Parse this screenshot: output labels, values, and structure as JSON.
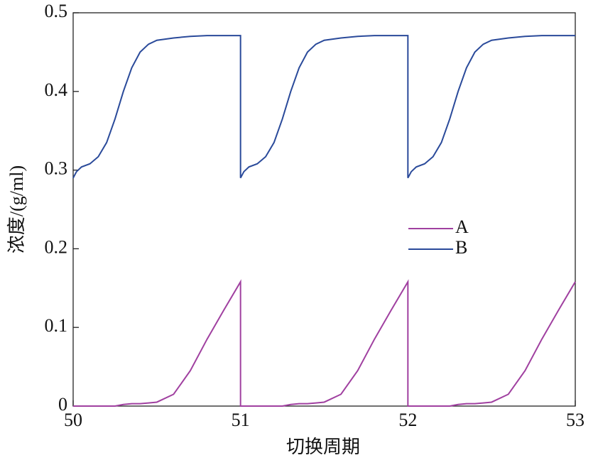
{
  "chart_data": {
    "type": "line",
    "xlabel": "切换周期",
    "ylabel": "浓度/(g/ml)",
    "x": [
      50,
      50.02,
      50.05,
      50.1,
      50.15,
      50.2,
      50.25,
      50.3,
      50.35,
      50.4,
      50.45,
      50.5,
      50.6,
      50.7,
      50.8,
      50.9,
      51,
      51,
      51.02,
      51.05,
      51.1,
      51.15,
      51.2,
      51.25,
      51.3,
      51.35,
      51.4,
      51.45,
      51.5,
      51.6,
      51.7,
      51.8,
      51.9,
      52,
      52,
      52.02,
      52.05,
      52.1,
      52.15,
      52.2,
      52.25,
      52.3,
      52.35,
      52.4,
      52.45,
      52.5,
      52.6,
      52.7,
      52.8,
      52.9,
      53
    ],
    "series": [
      {
        "name": "A",
        "color": "#a040a0",
        "values": [
          0,
          0,
          0,
          0,
          0,
          0,
          0,
          0.002,
          0.003,
          0.003,
          0.004,
          0.005,
          0.015,
          0.045,
          0.085,
          0.122,
          0.158,
          0,
          0,
          0,
          0,
          0,
          0,
          0,
          0.002,
          0.003,
          0.003,
          0.004,
          0.005,
          0.015,
          0.045,
          0.085,
          0.122,
          0.158,
          0,
          0,
          0,
          0,
          0,
          0,
          0,
          0.002,
          0.003,
          0.003,
          0.004,
          0.005,
          0.015,
          0.045,
          0.085,
          0.122,
          0.158
        ]
      },
      {
        "name": "B",
        "color": "#2a4a9a",
        "values": [
          0.29,
          0.298,
          0.304,
          0.308,
          0.317,
          0.335,
          0.365,
          0.4,
          0.43,
          0.45,
          0.46,
          0.465,
          0.468,
          0.47,
          0.471,
          0.471,
          0.471,
          0.29,
          0.298,
          0.304,
          0.308,
          0.317,
          0.335,
          0.365,
          0.4,
          0.43,
          0.45,
          0.46,
          0.465,
          0.468,
          0.47,
          0.471,
          0.471,
          0.471,
          0.29,
          0.298,
          0.304,
          0.308,
          0.317,
          0.335,
          0.365,
          0.4,
          0.43,
          0.45,
          0.46,
          0.465,
          0.468,
          0.47,
          0.471,
          0.471,
          0.471
        ]
      }
    ],
    "xlim": [
      50,
      53
    ],
    "xticks": [
      50,
      51,
      52,
      53
    ],
    "ylim": [
      0,
      0.5
    ],
    "yticks": [
      0,
      0.1,
      0.2,
      0.3,
      0.4,
      0.5
    ]
  }
}
